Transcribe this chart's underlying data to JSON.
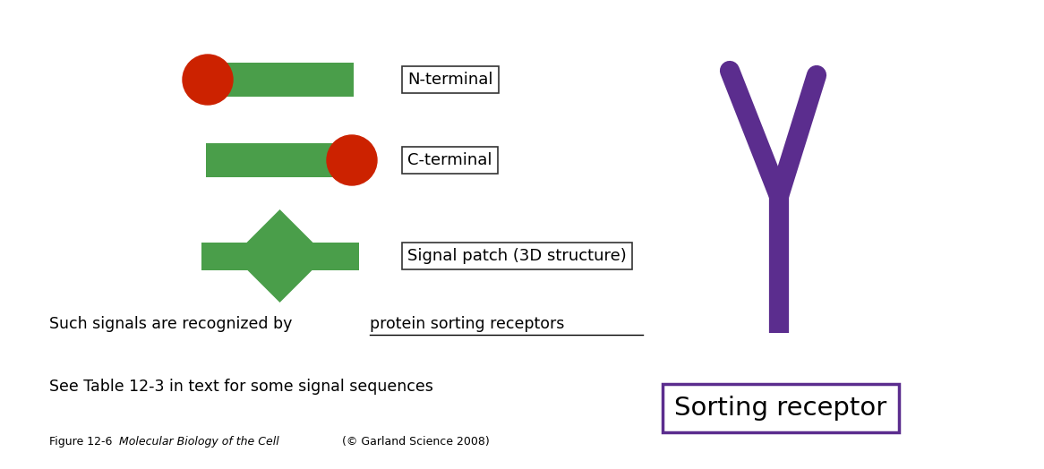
{
  "fig_width": 11.66,
  "fig_height": 5.24,
  "bg_color": "#ffffff",
  "green_color": "#4a9e4a",
  "red_color": "#cc2200",
  "purple_color": "#5b2d8e",
  "black_color": "#111111",
  "n_terminal_label": "N-terminal",
  "c_terminal_label": "C-terminal",
  "signal_patch_label": "Signal patch (3D structure)",
  "sorting_receptor_label": "Sorting receptor",
  "text_line1_plain": "Such signals are recognized by ",
  "text_line1_underline": "protein sorting receptors",
  "text_line2": "See Table 12-3 in text for some signal sequences",
  "caption_normal1": "Figure 12-6  ",
  "caption_italic": "Molecular Biology of the Cell",
  "caption_normal2": " (© Garland Science 2008)"
}
